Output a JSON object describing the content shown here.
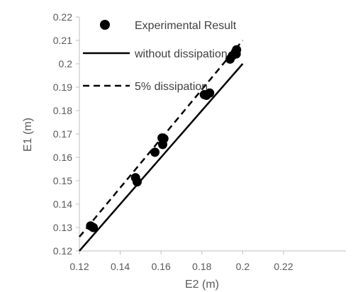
{
  "chart_data": {
    "type": "scatter",
    "xlabel": "E2 (m)",
    "ylabel": "E1 (m)",
    "xlim": [
      0.12,
      0.22
    ],
    "ylim": [
      0.12,
      0.22
    ],
    "x_ticks": [
      "0.12",
      "0.14",
      "0.16",
      "0.18",
      "0.2",
      "0.22"
    ],
    "y_ticks": [
      "0.12",
      "0.13",
      "0.14",
      "0.15",
      "0.16",
      "0.17",
      "0.18",
      "0.19",
      "0.2",
      "0.21",
      "0.22"
    ],
    "x_tick_values": [
      0.12,
      0.14,
      0.16,
      0.18,
      0.2,
      0.22
    ],
    "y_tick_values": [
      0.12,
      0.13,
      0.14,
      0.15,
      0.16,
      0.17,
      0.18,
      0.19,
      0.2,
      0.21,
      0.22
    ],
    "grid": false,
    "legend_position": "top-left",
    "series": [
      {
        "name": "Experimental Result",
        "style": "marker",
        "color": "#000000",
        "points": [
          [
            0.1255,
            0.1307
          ],
          [
            0.1268,
            0.13
          ],
          [
            0.1475,
            0.1513
          ],
          [
            0.1483,
            0.1495
          ],
          [
            0.157,
            0.1622
          ],
          [
            0.1605,
            0.1683
          ],
          [
            0.1614,
            0.168
          ],
          [
            0.1608,
            0.1655
          ],
          [
            0.1812,
            0.1868
          ],
          [
            0.1822,
            0.1865
          ],
          [
            0.1838,
            0.1875
          ],
          [
            0.1938,
            0.202
          ],
          [
            0.195,
            0.2035
          ],
          [
            0.1965,
            0.205
          ],
          [
            0.197,
            0.206
          ],
          [
            0.1968,
            0.2042
          ]
        ]
      },
      {
        "name": "without dissipation",
        "style": "solid",
        "color": "#000000",
        "points": [
          [
            0.12,
            0.12
          ],
          [
            0.2,
            0.2
          ]
        ]
      },
      {
        "name": "5% dissipation",
        "style": "dashed",
        "color": "#000000",
        "points": [
          [
            0.12,
            0.126
          ],
          [
            0.2,
            0.21
          ]
        ]
      }
    ]
  }
}
